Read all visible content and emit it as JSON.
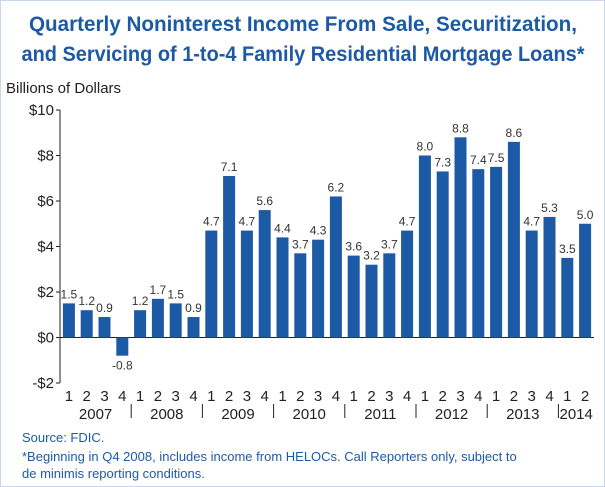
{
  "chart_data": {
    "type": "bar",
    "title": "Quarterly Noninterest Income From Sale, Securitization,",
    "subtitle": "and Servicing of 1-to-4 Family Residential Mortgage Loans*",
    "y_label": "Billions of Dollars",
    "categories": [
      "1",
      "2",
      "3",
      "4",
      "1",
      "2",
      "3",
      "4",
      "1",
      "2",
      "3",
      "4",
      "1",
      "2",
      "3",
      "4",
      "1",
      "2",
      "3",
      "4",
      "1",
      "2",
      "3",
      "4",
      "1",
      "2",
      "3",
      "4",
      "1",
      "2"
    ],
    "groups": [
      "2007",
      "2008",
      "2009",
      "2010",
      "2011",
      "2012",
      "2013",
      "2014"
    ],
    "values": [
      1.5,
      1.2,
      0.9,
      -0.8,
      1.2,
      1.7,
      1.5,
      0.9,
      4.7,
      7.1,
      4.7,
      5.6,
      4.4,
      3.7,
      4.3,
      6.2,
      3.6,
      3.2,
      3.7,
      4.7,
      8.0,
      7.3,
      8.8,
      7.4,
      7.5,
      8.6,
      4.7,
      5.3,
      3.5,
      5.0
    ],
    "value_labels": [
      "1.5",
      "1.2",
      "0.9",
      "-0.8",
      "1.2",
      "1.7",
      "1.5",
      "0.9",
      "4.7",
      "7.1",
      "4.7",
      "5.6",
      "4.4",
      "3.7",
      "4.3",
      "6.2",
      "3.6",
      "3.2",
      "3.7",
      "4.7",
      "8.0",
      "7.3",
      "8.8",
      "7.4",
      "7.5",
      "8.6",
      "4.7",
      "5.3",
      "3.5",
      "5.0"
    ],
    "color": "#1d5aa5",
    "ylim": [
      -2,
      10
    ],
    "yticks": [
      {
        "value": -2,
        "label": "-$2"
      },
      {
        "value": 0,
        "label": "$0"
      },
      {
        "value": 2,
        "label": "$2"
      },
      {
        "value": 4,
        "label": "$4"
      },
      {
        "value": 6,
        "label": "$6"
      },
      {
        "value": 8,
        "label": "$8"
      },
      {
        "value": 10,
        "label": "$10"
      }
    ],
    "grid": false,
    "notes": [
      "Source: FDIC.",
      "*Beginning in Q4 2008, includes income from HELOCs. Call Reporters only, subject to",
      "de minimis reporting conditions."
    ]
  }
}
